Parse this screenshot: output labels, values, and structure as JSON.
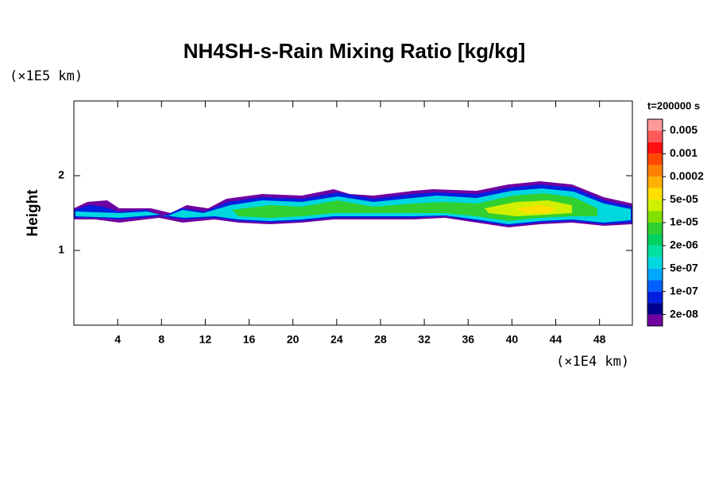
{
  "chart_data": {
    "type": "contour",
    "title": "NH4SH-s-Rain Mixing Ratio [kg/kg]",
    "y_label": "Height",
    "y_unit": "(×1E5 km)",
    "x_unit": "(×1E4 km)",
    "time_label": "t=200000 s",
    "xlim": [
      0,
      51
    ],
    "xticks": [
      4,
      8,
      12,
      16,
      20,
      24,
      28,
      32,
      36,
      40,
      44,
      48
    ],
    "ylim": [
      0,
      3
    ],
    "yticks": [
      1,
      2
    ],
    "colorbar": {
      "colors": [
        "#ff9a9a",
        "#ff5a5a",
        "#ff1010",
        "#ff4800",
        "#ff8000",
        "#ffb000",
        "#ffe000",
        "#d0f000",
        "#80e000",
        "#30d030",
        "#00d060",
        "#00e0a0",
        "#00d8e0",
        "#00a8ff",
        "#0060ff",
        "#0020e0",
        "#000090",
        "#7000a0"
      ],
      "ticks": [
        0.005,
        0.001,
        0.0002,
        {
          "value": 5e-05,
          "label": "5e-05"
        },
        {
          "value": 1e-05,
          "label": "1e-05"
        },
        {
          "value": 2e-06,
          "label": "2e-06"
        },
        {
          "value": 5e-07,
          "label": "5e-07"
        },
        {
          "value": 1e-07,
          "label": "1e-07"
        },
        {
          "value": 2e-08,
          "label": "2e-08"
        }
      ]
    }
  }
}
